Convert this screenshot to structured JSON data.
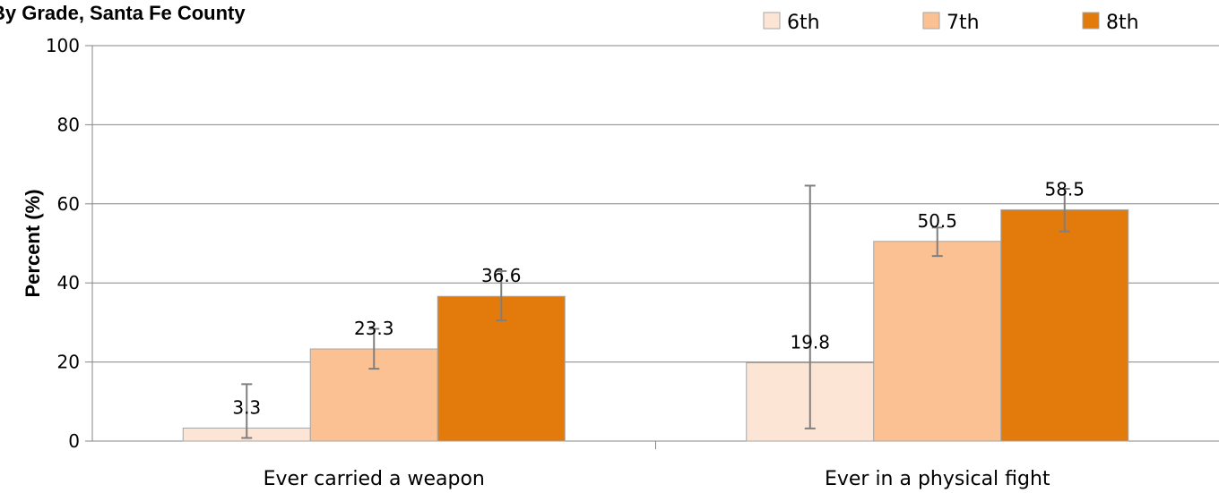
{
  "chart_data": {
    "type": "bar",
    "title": "By Grade, Santa Fe County",
    "ylabel": "Percent (%)",
    "xlabel": "",
    "ylim": [
      0,
      100
    ],
    "yticks": [
      0,
      20,
      40,
      60,
      80,
      100
    ],
    "grid": true,
    "legend_position": "top-right",
    "categories": [
      "Ever carried a weapon",
      "Ever in a physical fight"
    ],
    "series": [
      {
        "name": "6th",
        "color": "#FDE5D5",
        "values": [
          3.3,
          19.8
        ],
        "error_low": [
          0.8,
          3.2
        ],
        "error_high": [
          14.4,
          64.6
        ]
      },
      {
        "name": "7th",
        "color": "#FBC193",
        "values": [
          23.3,
          50.5
        ],
        "error_low": [
          18.3,
          46.8
        ],
        "error_high": [
          28.4,
          54.0
        ]
      },
      {
        "name": "8th",
        "color": "#E27B0C",
        "values": [
          36.6,
          58.5
        ],
        "error_low": [
          30.5,
          53.0
        ],
        "error_high": [
          43.0,
          63.8
        ]
      }
    ]
  }
}
